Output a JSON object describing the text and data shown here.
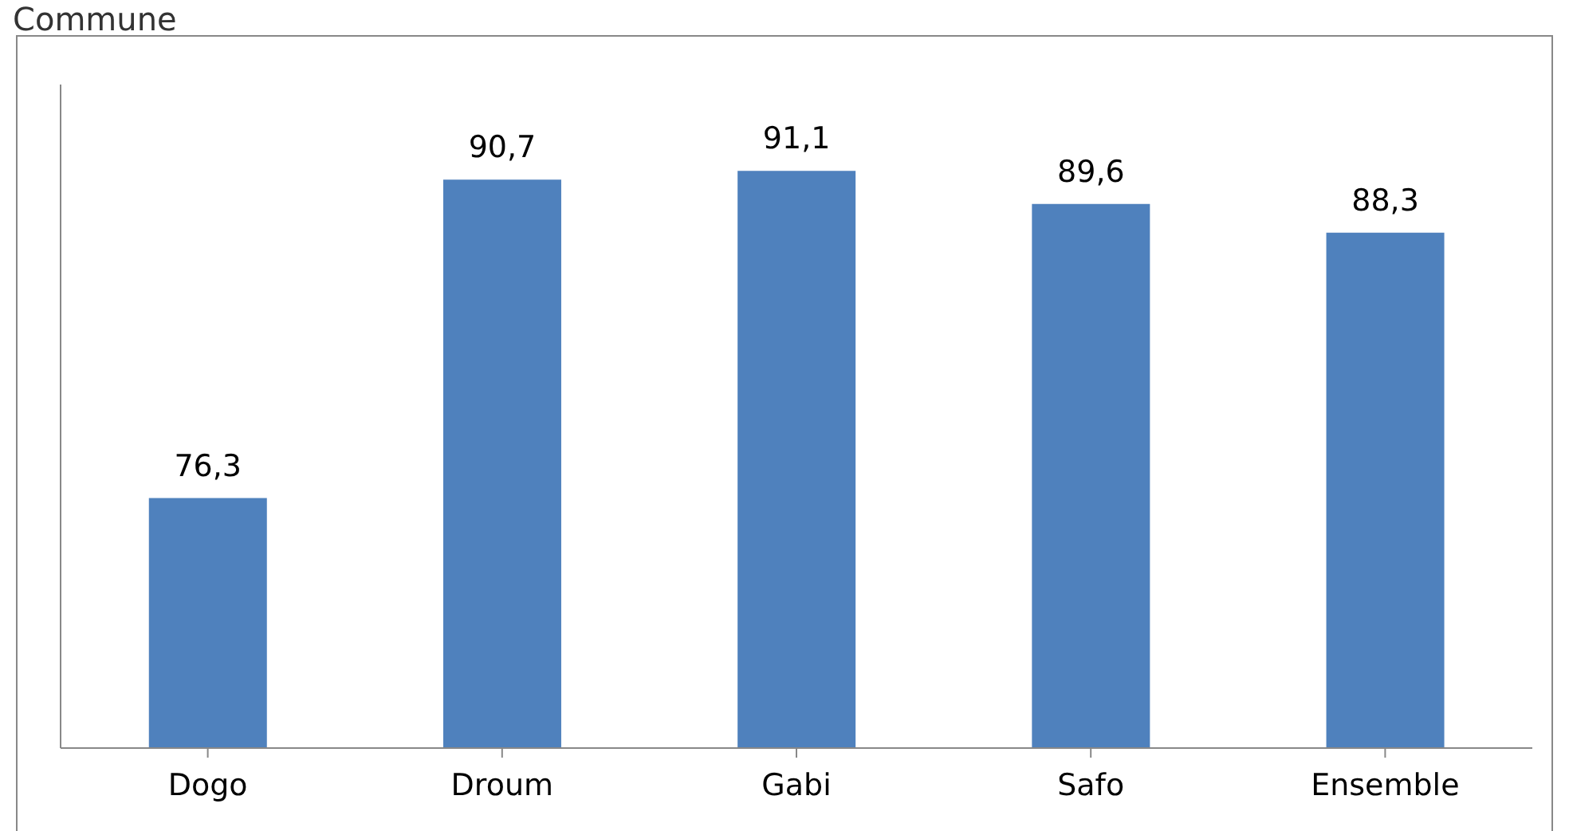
{
  "chart_data": {
    "type": "bar",
    "title": "Commune",
    "categories": [
      "Dogo",
      "Droum",
      "Gabi",
      "Safo",
      "Ensemble"
    ],
    "values": [
      76.3,
      90.7,
      91.1,
      89.6,
      88.3
    ],
    "value_labels": [
      "76,3",
      "90,7",
      "91,1",
      "89,6",
      "88,3"
    ],
    "color": "#4f81bd",
    "ylim": [
      65,
      95
    ],
    "tick_labels": "x"
  }
}
